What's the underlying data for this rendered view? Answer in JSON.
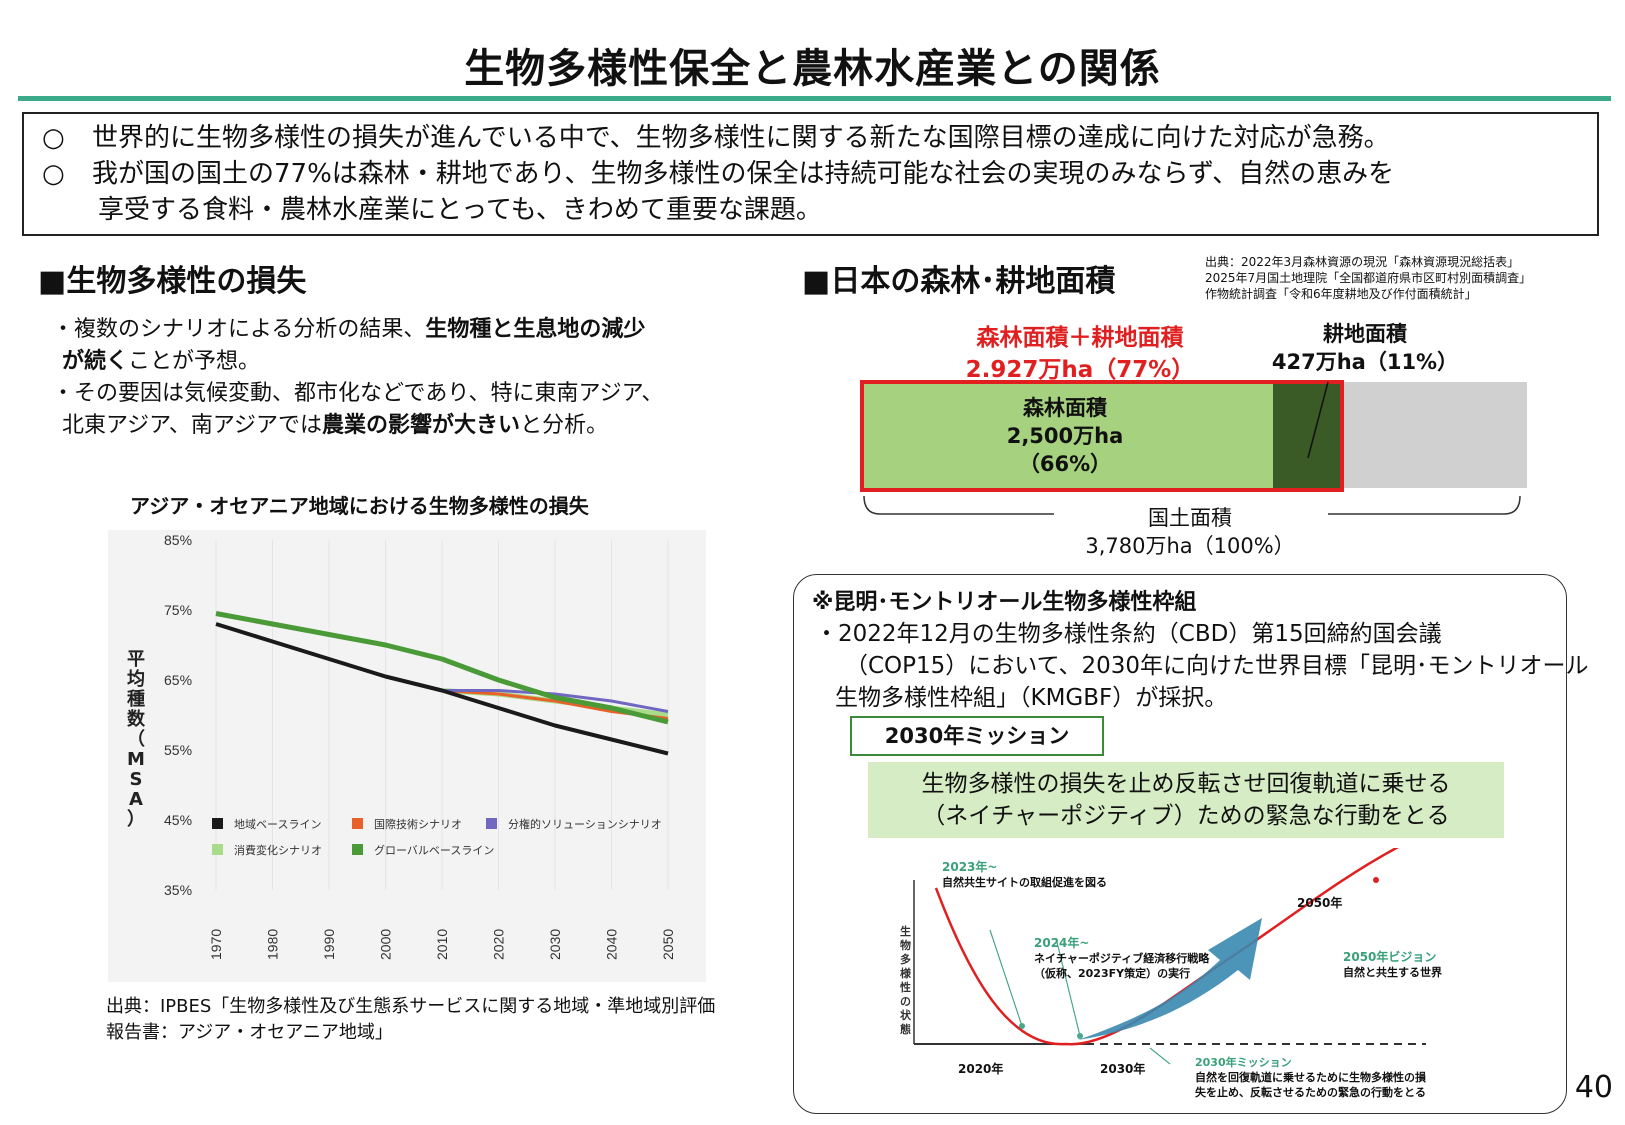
{
  "title": "生物多様性保全と農林水産業との関係",
  "intro": {
    "bullet_mark": "○",
    "line1": "世界的に生物多様性の損失が進んでいる中で、生物多様性に関する新たな国際目標の達成に向けた対応が急務。",
    "line2": "我が国の国土の77%は森林・耕地であり、生物多様性の保全は持続可能な社会の実現のみならず、自然の恵みを",
    "line2_cont": "享受する食料・農林水産業にとっても、きわめて重要な課題。"
  },
  "left": {
    "heading": "■生物多様性の損失",
    "bullet1_a": "・複数のシナリオによる分析の結果、",
    "bullet1_b": "生物種と生息地の減少",
    "bullet1_c": "が続く",
    "bullet1_d": "ことが予想。",
    "bullet2_a": "・その要因は気候変動、都市化などであり、特に東南アジア、",
    "bullet2_b": "北東アジア、南アジアでは",
    "bullet2_c": "農業の影響が大きい",
    "bullet2_d": "と分析。",
    "chart_title": "アジア・オセアニア地域における生物多様性の損失",
    "source": "出典：IPBES「生物多様性及び生態系サービスに関する地域・準地域別評価報告書：アジア・オセアニア地域」"
  },
  "chart_data": {
    "type": "line",
    "ylabel": "平均種数（MSA）",
    "y_ticks": [
      "85%",
      "75%",
      "65%",
      "55%",
      "45%",
      "35%"
    ],
    "ylim": [
      35,
      85
    ],
    "x_ticks": [
      "1970",
      "1980",
      "1990",
      "2000",
      "2010",
      "2020",
      "2030",
      "2040",
      "2050"
    ],
    "legend_position": "bottom inside plot",
    "series": [
      {
        "name": "地域ベースライン",
        "color": "#1a1a1a",
        "x": [
          1970,
          1980,
          1990,
          2000,
          2010,
          2020,
          2030,
          2040,
          2050
        ],
        "values": [
          73,
          70.5,
          68,
          65.5,
          63.5,
          61,
          58.5,
          56.5,
          54.5
        ]
      },
      {
        "name": "国際技術シナリオ",
        "color": "#e8602a",
        "x": [
          2010,
          2020,
          2030,
          2040,
          2050
        ],
        "values": [
          63.5,
          63,
          62,
          60.5,
          59.5
        ]
      },
      {
        "name": "分権的ソリューションシナリオ",
        "color": "#7068c0",
        "x": [
          2010,
          2020,
          2030,
          2040,
          2050
        ],
        "values": [
          63.5,
          63.5,
          63,
          62,
          60.5
        ]
      },
      {
        "name": "消費変化シナリオ",
        "color": "#a8dc8a",
        "x": [
          2010,
          2020,
          2030,
          2040,
          2050
        ],
        "values": [
          63.5,
          63,
          62,
          61,
          60
        ]
      },
      {
        "name": "グローバルベースライン",
        "color": "#4a9a38",
        "x": [
          1970,
          1980,
          1990,
          2000,
          2010,
          2020,
          2030,
          2040,
          2050
        ],
        "values": [
          74.5,
          73,
          71.5,
          70,
          68,
          65,
          62.5,
          61,
          59
        ]
      }
    ]
  },
  "right": {
    "heading": "■日本の森林･耕地面積",
    "source1": "出典：2022年3月森林資源の現況「森林資源現況総括表」",
    "source2": "2025年7月国土地理院「全国都道府県市区町村別面積調査」",
    "source3": "作物統計調査「令和6年度耕地及び作付面積統計」",
    "combined_label": "森林面積＋耕地面積",
    "combined_value": "2.927万ha（77%）",
    "farm_label": "耕地面積",
    "farm_value": "427万ha（11%）",
    "forest_label": "森林面積",
    "forest_value": "2,500万ha",
    "forest_pct": "（66%）",
    "total_label": "国土面積",
    "total_value": "3,780万ha（100%）",
    "area_shares": {
      "forest": 66,
      "farmland": 11,
      "other": 23
    },
    "colors": {
      "forest": "#a6d17f",
      "farmland": "#3a5a26",
      "other": "#d0d0d0",
      "highlight": "#e02020"
    }
  },
  "kmgbf": {
    "heading": "※昆明･モントリオール生物多様性枠組",
    "body1": "・2022年12月の生物多様性条約（CBD）第15回締約国会議",
    "body2": "（COP15）において、2030年に向けた世界目標「昆明･モントリオール",
    "body3": "生物多様性枠組」（KMGBF）が採択。",
    "mission_label": "2030年ミッション",
    "mission_text1": "生物多様性の損失を止め反転させ回復軌道に乗せる",
    "mission_text2": "（ネイチャーポジティブ）ための緊急な行動をとる",
    "diagram": {
      "ylabel": "生物多様性の状態",
      "x_labels": [
        "2020年",
        "2030年"
      ],
      "label_2023": "2023年~",
      "label_2023_desc": "自然共生サイトの取組促進を図る",
      "label_2024": "2024年~",
      "label_2024_desc1": "ネイチャーポジティブ経済移行戦略",
      "label_2024_desc2": "（仮称、2023FY策定）の実行",
      "label_2050": "2050年",
      "label_vision": "2050年ビジョン",
      "label_vision_desc": "自然と共生する世界",
      "label_mission": "2030年ミッション",
      "label_mission_desc1": "自然を回復軌道に乗せるために生物多様性の損",
      "label_mission_desc2": "失を止め、反転させるための緊急の行動をとる"
    }
  },
  "page_number": "40"
}
